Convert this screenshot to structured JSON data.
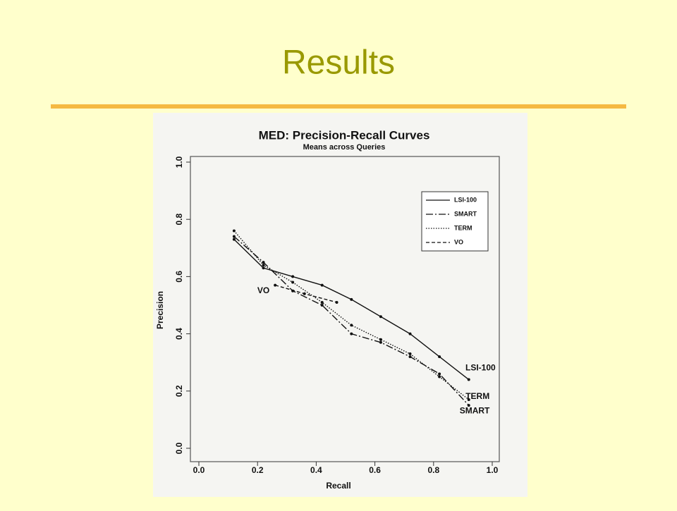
{
  "title": "Results",
  "chart_data": {
    "type": "line",
    "title": "MED: Precision-Recall Curves",
    "subtitle": "Means across Queries",
    "x_label": "Recall",
    "y_label": "Precision",
    "xlim": [
      0,
      1
    ],
    "ylim": [
      0,
      1
    ],
    "xticks": [
      {
        "value": 0,
        "label": "0.0"
      },
      0.2,
      0.4,
      0.6,
      0.8,
      {
        "value": 1,
        "label": "1.0"
      }
    ],
    "yticks": [
      {
        "value": 0,
        "label": "0.0"
      },
      0.2,
      0.4,
      0.6,
      0.8,
      {
        "value": 1,
        "label": "1.0"
      }
    ],
    "legend": "top-right",
    "series": [
      {
        "name": "LSI-100",
        "color": "#111111",
        "dash": "solid",
        "x": [
          0.12,
          0.22,
          0.32,
          0.42,
          0.52,
          0.62,
          0.72,
          0.82,
          0.92
        ],
        "values": [
          0.73,
          0.63,
          0.6,
          0.57,
          0.52,
          0.46,
          0.4,
          0.32,
          0.24
        ]
      },
      {
        "name": "SMART",
        "color": "#111111",
        "dash": "dashdot",
        "x": [
          0.12,
          0.22,
          0.32,
          0.42,
          0.52,
          0.62,
          0.72,
          0.82,
          0.92
        ],
        "values": [
          0.74,
          0.65,
          0.55,
          0.5,
          0.4,
          0.37,
          0.32,
          0.26,
          0.15
        ]
      },
      {
        "name": "TERM",
        "color": "#111111",
        "dash": "dotted",
        "x": [
          0.12,
          0.22,
          0.32,
          0.42,
          0.52,
          0.62,
          0.72,
          0.82,
          0.92
        ],
        "values": [
          0.76,
          0.64,
          0.58,
          0.51,
          0.43,
          0.38,
          0.33,
          0.25,
          0.17
        ]
      },
      {
        "name": "VO",
        "color": "#111111",
        "dash": "dashed",
        "x": [
          0.26,
          0.36,
          0.47
        ],
        "values": [
          0.57,
          0.54,
          0.51
        ]
      }
    ],
    "annotations": [
      {
        "text": "VO",
        "x": 0.22,
        "y": 0.55
      },
      {
        "text": "LSI-100",
        "x": 0.96,
        "y": 0.28
      },
      {
        "text": "TERM",
        "x": 0.95,
        "y": 0.18
      },
      {
        "text": "SMART",
        "x": 0.94,
        "y": 0.13
      }
    ]
  }
}
